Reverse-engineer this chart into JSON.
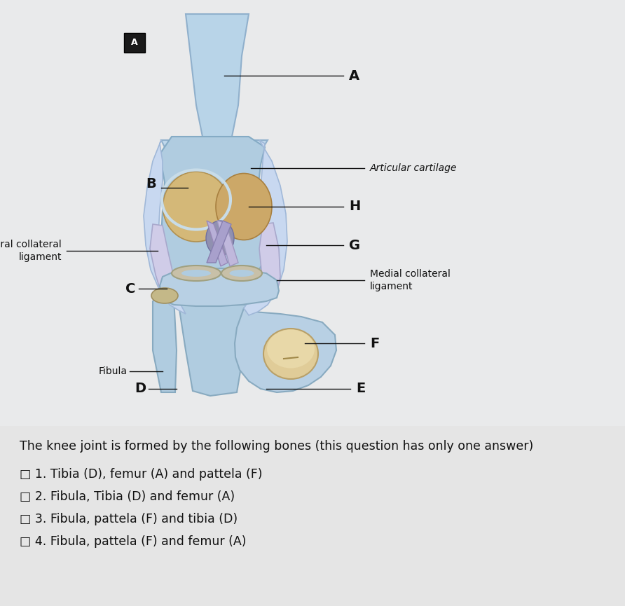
{
  "bg_color": "#e8e8e8",
  "question_text": "The knee joint is formed by the following bones (this question has only one answer)",
  "options": [
    "□ 1. Tibia (D), femur (A) and pattela (F)",
    "□ 2. Fibula, Tibia (D) and femur (A)",
    "□ 3. Fibula, pattela (F) and tibia (D)",
    "□ 4. Fibula, pattela (F) and femur (A)"
  ],
  "text_color": "#111111",
  "line_color": "#111111",
  "question_fontsize": 12.5,
  "option_fontsize": 12.5
}
